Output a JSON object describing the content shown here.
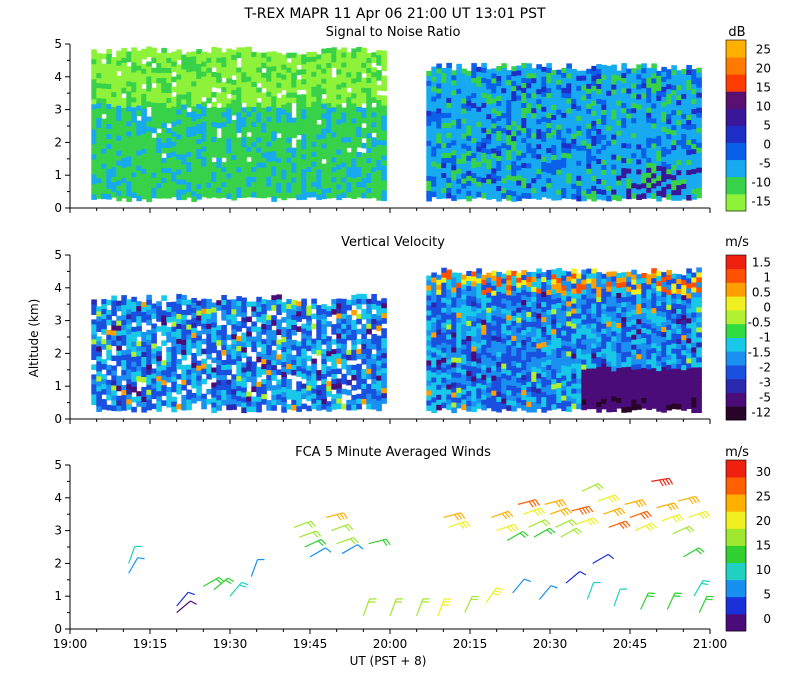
{
  "figure": {
    "title": "T-REX  MAPR 11 Apr 06  21:00 UT  13:01  PST",
    "xlabel": "UT  (PST + 8)",
    "ylabel": "Altitude (km)",
    "x_ticks": [
      "19:00",
      "19:15",
      "19:30",
      "19:45",
      "20:00",
      "20:15",
      "20:30",
      "20:45",
      "21:00"
    ]
  },
  "colors": {
    "snr": [
      "#8ef23a",
      "#38d24a",
      "#18aaf0",
      "#0a60e8",
      "#1e2fc8",
      "#3a1698",
      "#5a1070",
      "#ff3c00",
      "#ff7a00",
      "#ffb000",
      "#ffd400"
    ],
    "vel": [
      "#2a0428",
      "#4a0c78",
      "#2a2ab0",
      "#1a50e0",
      "#1a90f0",
      "#18c8e8",
      "#30dc40",
      "#b0f030",
      "#f0f020",
      "#ffa000",
      "#ff5000",
      "#f02010"
    ],
    "wind": [
      "#4a0c78",
      "#1a30d8",
      "#1890f0",
      "#20d0c0",
      "#30d030",
      "#a0e830",
      "#f0f020",
      "#ffb000",
      "#ff6000",
      "#f02010"
    ]
  },
  "chart_data": [
    {
      "type": "heatmap",
      "title": "Signal to Noise Ratio",
      "units": "dB",
      "x_range": [
        "19:00",
        "21:00"
      ],
      "ylim": [
        0,
        5
      ],
      "y_ticks": [
        0,
        1,
        2,
        3,
        4,
        5
      ],
      "colorbar_labels": [
        "-15",
        "-10",
        "-5",
        "0",
        "5",
        "10",
        "15",
        "20",
        "25"
      ],
      "data_gap": [
        "20:00",
        "20:06"
      ],
      "data_start": "19:04",
      "data_end": "20:58",
      "profile_top_km": [
        4.8,
        4.3
      ],
      "profile_bottom_km": 0.35
    },
    {
      "type": "heatmap",
      "title": "Vertical Velocity",
      "units": "m/s",
      "x_range": [
        "19:00",
        "21:00"
      ],
      "ylim": [
        0,
        5
      ],
      "y_ticks": [
        0,
        1,
        2,
        3,
        4,
        5
      ],
      "colorbar_labels": [
        "-12",
        "-5",
        "-3",
        "-2",
        "-1.5",
        "-1",
        "-0.5",
        "0",
        "0.5",
        "1",
        "1.5"
      ],
      "data_gap": [
        "20:00",
        "20:06"
      ],
      "data_start": "19:04",
      "data_end": "20:58",
      "profile_top_km": [
        3.7,
        4.5
      ],
      "profile_bottom_km": 0.35
    },
    {
      "type": "scatter",
      "title": "FCA 5 Minute Averaged Winds",
      "units": "m/s",
      "x_range": [
        "19:00",
        "21:00"
      ],
      "ylim": [
        0,
        5
      ],
      "y_ticks": [
        0,
        1,
        2,
        3,
        4,
        5
      ],
      "colorbar_labels": [
        "0",
        "5",
        "10",
        "15",
        "20",
        "25",
        "30"
      ],
      "barbs": [
        {
          "t": "19:11",
          "alt": 2.0,
          "spd": 10,
          "dir": 200
        },
        {
          "t": "19:11",
          "alt": 1.7,
          "spd": 9,
          "dir": 210
        },
        {
          "t": "19:20",
          "alt": 0.7,
          "spd": 4,
          "dir": 220
        },
        {
          "t": "19:20",
          "alt": 0.5,
          "spd": 3,
          "dir": 230
        },
        {
          "t": "19:25",
          "alt": 1.3,
          "spd": 14,
          "dir": 240
        },
        {
          "t": "19:27",
          "alt": 1.2,
          "spd": 13,
          "dir": 230
        },
        {
          "t": "19:30",
          "alt": 1.0,
          "spd": 12,
          "dir": 220
        },
        {
          "t": "19:34",
          "alt": 1.6,
          "spd": 9,
          "dir": 200
        },
        {
          "t": "19:42",
          "alt": 3.1,
          "spd": 17,
          "dir": 250
        },
        {
          "t": "19:43",
          "alt": 2.8,
          "spd": 16,
          "dir": 250
        },
        {
          "t": "19:44",
          "alt": 2.5,
          "spd": 14,
          "dir": 245
        },
        {
          "t": "19:45",
          "alt": 2.2,
          "spd": 7,
          "dir": 240
        },
        {
          "t": "19:48",
          "alt": 3.4,
          "spd": 24,
          "dir": 255
        },
        {
          "t": "19:49",
          "alt": 3.0,
          "spd": 19,
          "dir": 250
        },
        {
          "t": "19:50",
          "alt": 2.6,
          "spd": 17,
          "dir": 250
        },
        {
          "t": "19:51",
          "alt": 2.3,
          "spd": 8,
          "dir": 240
        },
        {
          "t": "19:56",
          "alt": 2.6,
          "spd": 15,
          "dir": 255
        },
        {
          "t": "19:55",
          "alt": 0.4,
          "spd": 18,
          "dir": 200
        },
        {
          "t": "20:00",
          "alt": 0.4,
          "spd": 17,
          "dir": 200
        },
        {
          "t": "20:05",
          "alt": 0.4,
          "spd": 18,
          "dir": 200
        },
        {
          "t": "20:09",
          "alt": 0.4,
          "spd": 21,
          "dir": 200
        },
        {
          "t": "20:10",
          "alt": 3.4,
          "spd": 24,
          "dir": 255
        },
        {
          "t": "20:11",
          "alt": 3.1,
          "spd": 22,
          "dir": 250
        },
        {
          "t": "20:14",
          "alt": 0.5,
          "spd": 19,
          "dir": 205
        },
        {
          "t": "20:18",
          "alt": 0.8,
          "spd": 20,
          "dir": 215
        },
        {
          "t": "20:19",
          "alt": 3.4,
          "spd": 25,
          "dir": 250
        },
        {
          "t": "20:20",
          "alt": 3.0,
          "spd": 20,
          "dir": 250
        },
        {
          "t": "20:22",
          "alt": 2.7,
          "spd": 14,
          "dir": 240
        },
        {
          "t": "20:23",
          "alt": 1.1,
          "spd": 8,
          "dir": 220
        },
        {
          "t": "20:24",
          "alt": 3.8,
          "spd": 26,
          "dir": 255
        },
        {
          "t": "20:25",
          "alt": 3.5,
          "spd": 22,
          "dir": 250
        },
        {
          "t": "20:26",
          "alt": 3.1,
          "spd": 19,
          "dir": 245
        },
        {
          "t": "20:27",
          "alt": 2.8,
          "spd": 15,
          "dir": 240
        },
        {
          "t": "20:28",
          "alt": 0.9,
          "spd": 9,
          "dir": 220
        },
        {
          "t": "20:29",
          "alt": 3.8,
          "spd": 25,
          "dir": 255
        },
        {
          "t": "20:30",
          "alt": 3.5,
          "spd": 23,
          "dir": 250
        },
        {
          "t": "20:31",
          "alt": 3.1,
          "spd": 18,
          "dir": 245
        },
        {
          "t": "20:32",
          "alt": 2.8,
          "spd": 16,
          "dir": 240
        },
        {
          "t": "20:33",
          "alt": 1.4,
          "spd": 5,
          "dir": 230
        },
        {
          "t": "20:34",
          "alt": 3.6,
          "spd": 28,
          "dir": 255
        },
        {
          "t": "20:35",
          "alt": 3.2,
          "spd": 21,
          "dir": 250
        },
        {
          "t": "20:36",
          "alt": 4.2,
          "spd": 17,
          "dir": 245
        },
        {
          "t": "20:37",
          "alt": 0.9,
          "spd": 10,
          "dir": 200
        },
        {
          "t": "20:38",
          "alt": 2.0,
          "spd": 4,
          "dir": 240
        },
        {
          "t": "20:39",
          "alt": 3.9,
          "spd": 22,
          "dir": 250
        },
        {
          "t": "20:40",
          "alt": 3.5,
          "spd": 24,
          "dir": 250
        },
        {
          "t": "20:41",
          "alt": 3.1,
          "spd": 27,
          "dir": 250
        },
        {
          "t": "20:42",
          "alt": 0.7,
          "spd": 11,
          "dir": 200
        },
        {
          "t": "20:44",
          "alt": 3.8,
          "spd": 24,
          "dir": 255
        },
        {
          "t": "20:45",
          "alt": 3.4,
          "spd": 26,
          "dir": 250
        },
        {
          "t": "20:46",
          "alt": 3.0,
          "spd": 22,
          "dir": 245
        },
        {
          "t": "20:47",
          "alt": 0.6,
          "spd": 13,
          "dir": 205
        },
        {
          "t": "20:49",
          "alt": 4.5,
          "spd": 29,
          "dir": 260
        },
        {
          "t": "20:50",
          "alt": 3.7,
          "spd": 24,
          "dir": 255
        },
        {
          "t": "20:51",
          "alt": 3.3,
          "spd": 22,
          "dir": 250
        },
        {
          "t": "20:52",
          "alt": 0.6,
          "spd": 15,
          "dir": 205
        },
        {
          "t": "20:53",
          "alt": 2.9,
          "spd": 19,
          "dir": 245
        },
        {
          "t": "20:54",
          "alt": 3.9,
          "spd": 23,
          "dir": 255
        },
        {
          "t": "20:55",
          "alt": 2.2,
          "spd": 14,
          "dir": 240
        },
        {
          "t": "20:56",
          "alt": 3.4,
          "spd": 21,
          "dir": 250
        },
        {
          "t": "20:57",
          "alt": 1.0,
          "spd": 12,
          "dir": 210
        },
        {
          "t": "20:58",
          "alt": 0.5,
          "spd": 15,
          "dir": 205
        }
      ]
    }
  ]
}
